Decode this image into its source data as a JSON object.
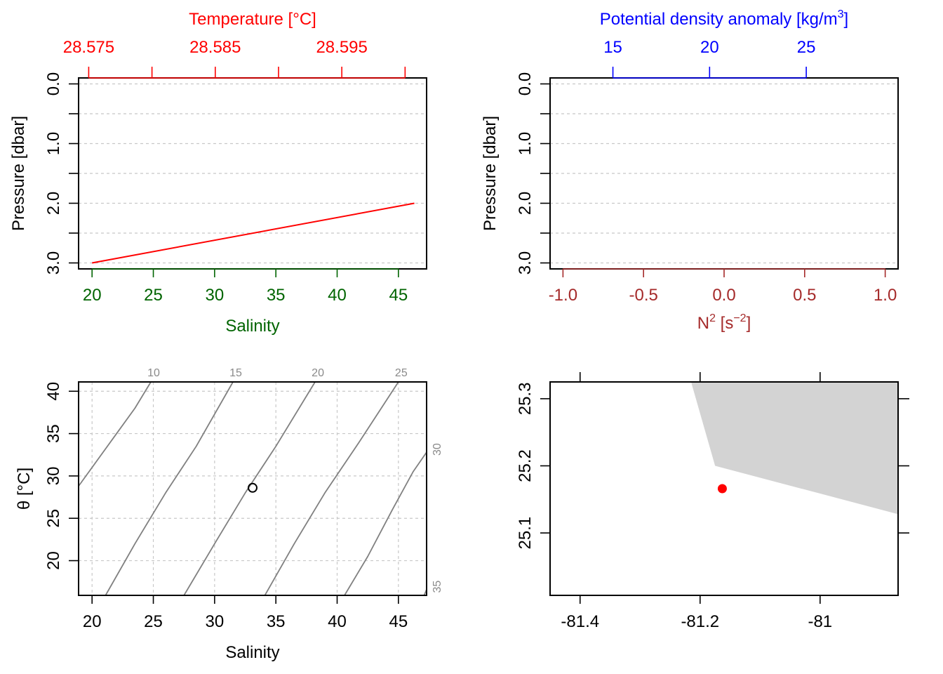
{
  "colors": {
    "temperature": "#ff0000",
    "salinity": "#006400",
    "density": "#0000ff",
    "n2": "#a52a2a",
    "black": "#000000",
    "grid": "#c8c8c8",
    "isopycnal": "#808080",
    "land": "#d3d3d3",
    "station": "#ff0000"
  },
  "chart_data": [
    {
      "type": "line",
      "title": "",
      "top_axis": {
        "label": "Temperature [°C]",
        "ticks": [
          28.575,
          28.58,
          28.585,
          28.59,
          28.595,
          28.6
        ],
        "tick_labels": [
          "28.575",
          "",
          "28.585",
          "",
          "28.595",
          ""
        ],
        "range": [
          28.5742,
          28.6017
        ]
      },
      "bottom_axis": {
        "label": "Salinity",
        "ticks": [
          20,
          25,
          30,
          35,
          40,
          45
        ],
        "tick_labels": [
          "20",
          "25",
          "30",
          "35",
          "40",
          "45"
        ],
        "range": [
          18.9,
          47.3
        ]
      },
      "y_axis": {
        "label": "Pressure [dbar]",
        "ticks": [
          0,
          0.5,
          1,
          1.5,
          2,
          2.5,
          3
        ],
        "tick_labels": [
          "0.0",
          "",
          "1.0",
          "",
          "2.0",
          "",
          "3.0"
        ],
        "range": [
          -0.1,
          3.1
        ],
        "reversed": true
      },
      "grid": true,
      "series": [
        {
          "x": [
            20,
            46.3
          ],
          "y": [
            3.0,
            2.0
          ]
        }
      ]
    },
    {
      "type": "line",
      "title": "",
      "top_axis": {
        "label": "Potential density anomaly [kg/m³]",
        "ticks": [
          15,
          20,
          25
        ],
        "tick_labels": [
          "15",
          "20",
          "25"
        ],
        "range": [
          11.75,
          29.75
        ]
      },
      "bottom_axis": {
        "label": "N² [s⁻²]",
        "ticks": [
          -1.0,
          -0.5,
          0.0,
          0.5,
          1.0
        ],
        "tick_labels": [
          "-1.0",
          "-0.5",
          "0.0",
          "0.5",
          "1.0"
        ],
        "range": [
          -1.08,
          1.08
        ]
      },
      "y_axis": {
        "label": "Pressure [dbar]",
        "ticks": [
          0,
          0.5,
          1,
          1.5,
          2,
          2.5,
          3
        ],
        "tick_labels": [
          "0.0",
          "",
          "1.0",
          "",
          "2.0",
          "",
          "3.0"
        ],
        "range": [
          -0.1,
          3.1
        ],
        "reversed": true
      },
      "grid": true,
      "series": []
    },
    {
      "type": "scatter",
      "title": "",
      "x_axis": {
        "label": "Salinity",
        "ticks": [
          20,
          25,
          30,
          35,
          40,
          45
        ],
        "tick_labels": [
          "20",
          "25",
          "30",
          "35",
          "40",
          "45"
        ],
        "range": [
          18.9,
          47.3
        ]
      },
      "y_axis": {
        "label": "θ [°C]",
        "ticks": [
          20,
          25,
          30,
          35,
          40
        ],
        "tick_labels": [
          "20",
          "25",
          "30",
          "35",
          "40"
        ],
        "range": [
          15.9,
          41.1
        ]
      },
      "grid": true,
      "isopycnals": [
        {
          "label": "10",
          "label_side": "top",
          "x": [
            18.9,
            20.5,
            22.0,
            23.5,
            24.8
          ],
          "y": [
            28.8,
            32.0,
            35.0,
            38.0,
            41.1
          ]
        },
        {
          "label": "15",
          "label_side": "top",
          "x": [
            21.1,
            23.5,
            26.0,
            28.5,
            31.5
          ],
          "y": [
            15.9,
            22.0,
            28.0,
            33.5,
            41.1
          ]
        },
        {
          "label": "20",
          "label_side": "top",
          "x": [
            27.5,
            30.0,
            32.5,
            35.0,
            38.2
          ],
          "y": [
            15.9,
            22.0,
            28.0,
            33.5,
            41.1
          ]
        },
        {
          "label": "25",
          "label_side": "top",
          "x": [
            34.1,
            36.5,
            39.0,
            41.8,
            45.0
          ],
          "y": [
            15.9,
            22.0,
            28.0,
            34.0,
            41.1
          ]
        },
        {
          "label": "30",
          "label_side": "right",
          "x": [
            40.6,
            42.5,
            44.5,
            46.2,
            47.3
          ],
          "y": [
            15.9,
            20.5,
            26.0,
            30.5,
            32.8
          ]
        },
        {
          "label": "35",
          "label_side": "right",
          "x": [
            47.1,
            47.3
          ],
          "y": [
            15.9,
            16.6
          ]
        }
      ],
      "points": [
        {
          "x": 33.1,
          "y": 28.6
        }
      ]
    },
    {
      "type": "map",
      "title": "",
      "x_axis": {
        "label": "",
        "ticks": [
          -81.4,
          -81.2,
          -81.0
        ],
        "tick_labels": [
          "-81.4",
          "-81.2",
          "-81"
        ],
        "range": [
          -81.45,
          -80.87
        ]
      },
      "y_axis": {
        "label": "",
        "ticks": [
          25.1,
          25.2,
          25.3
        ],
        "tick_labels": [
          "25.1",
          "25.2",
          "25.3"
        ],
        "range": [
          25.007,
          25.325
        ]
      },
      "land": [
        {
          "lon": -81.215,
          "lat": 25.325
        },
        {
          "lon": -81.175,
          "lat": 25.2
        },
        {
          "lon": -80.87,
          "lat": 25.128
        },
        {
          "lon": -80.87,
          "lat": 25.325
        }
      ],
      "station": {
        "lon": -81.163,
        "lat": 25.166
      }
    }
  ]
}
